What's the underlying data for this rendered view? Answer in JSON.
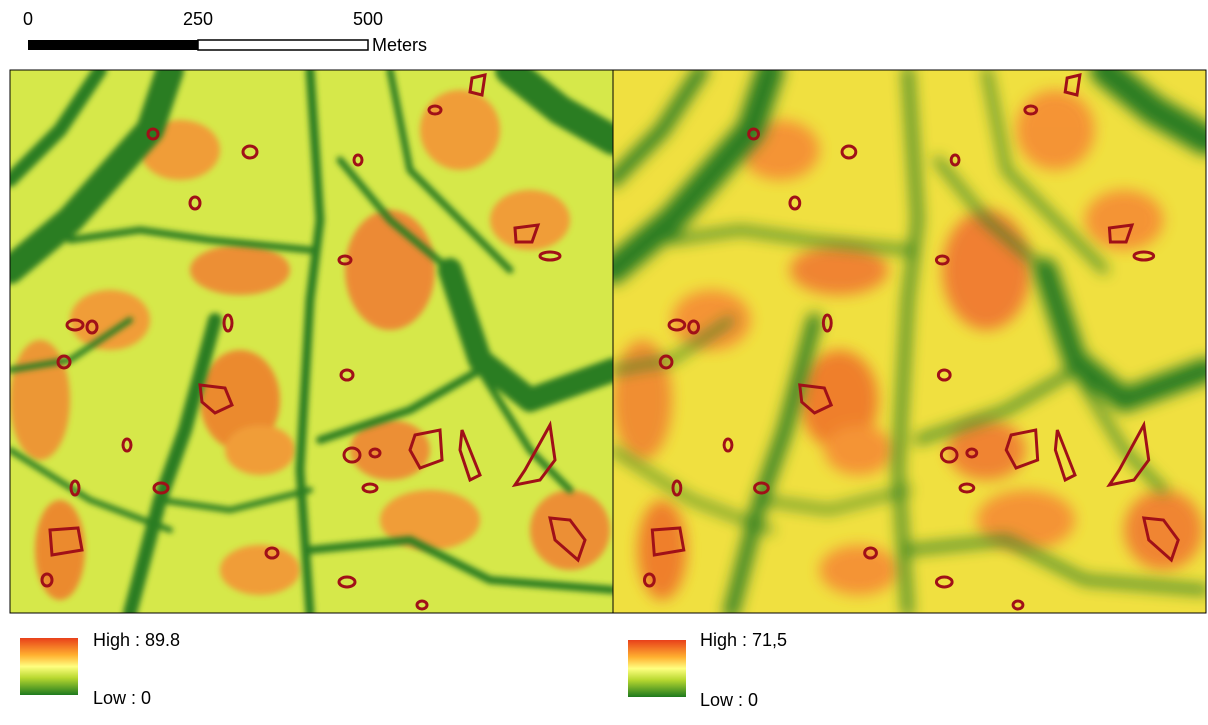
{
  "scale_bar": {
    "labels": [
      "0",
      "250",
      "500"
    ],
    "unit": "Meters"
  },
  "legends": [
    {
      "high": "High : 89.8",
      "low": "Low : 0"
    },
    {
      "high": "High : 71,5",
      "low": "Low : 0"
    }
  ]
}
